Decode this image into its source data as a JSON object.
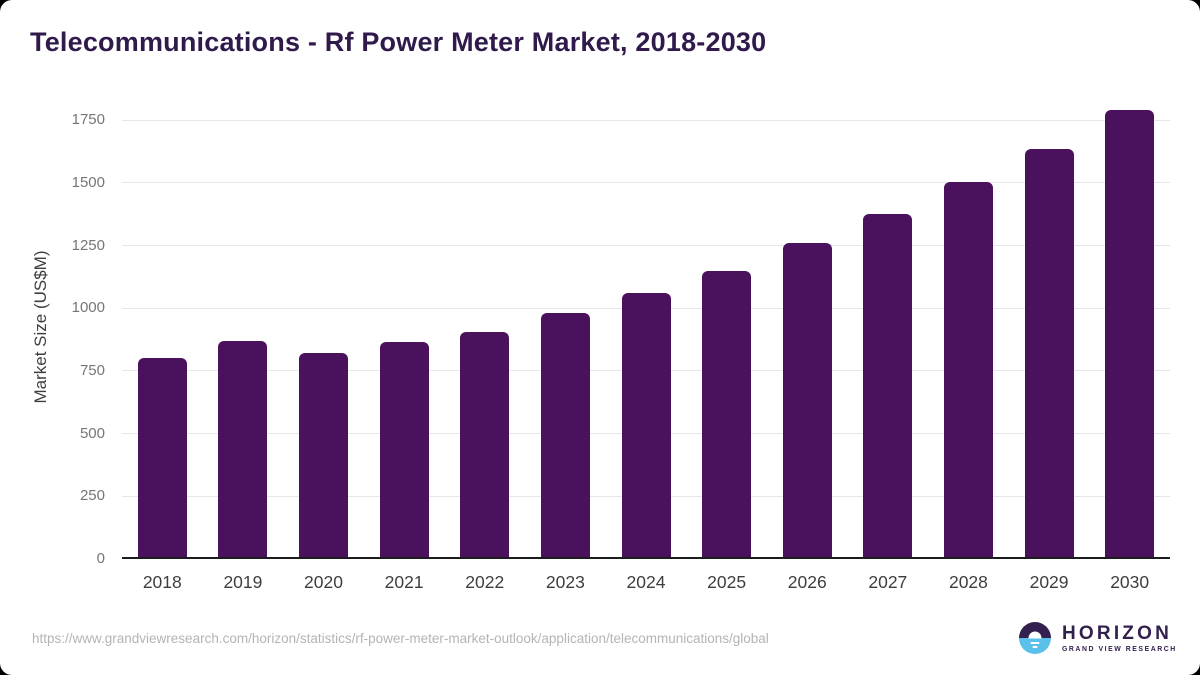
{
  "title": "Telecommunications - Rf Power Meter Market, 2018-2030",
  "chart_data": {
    "type": "bar",
    "title": "Telecommunications - Rf Power Meter Market, 2018-2030",
    "categories": [
      "2018",
      "2019",
      "2020",
      "2021",
      "2022",
      "2023",
      "2024",
      "2025",
      "2026",
      "2027",
      "2028",
      "2029",
      "2030"
    ],
    "values": [
      800,
      870,
      820,
      865,
      905,
      980,
      1060,
      1150,
      1260,
      1375,
      1505,
      1635,
      1790
    ],
    "xlabel": "",
    "ylabel": "Market Size (US$M)",
    "ylim": [
      0,
      1850
    ],
    "yticks": [
      0,
      250,
      500,
      750,
      1000,
      1250,
      1500,
      1750
    ],
    "grid": "horizontal",
    "legend": "none",
    "bar_color": "#4a115c"
  },
  "footer": {
    "source_url": "https://www.grandviewresearch.com/horizon/statistics/rf-power-meter-market-outlook/application/telecommunications/global",
    "logo": {
      "name": "HORIZON",
      "subtitle": "GRAND VIEW RESEARCH",
      "icon": "sun-horizon-icon",
      "purple": "#33204f",
      "blue": "#5bc0ea"
    }
  }
}
